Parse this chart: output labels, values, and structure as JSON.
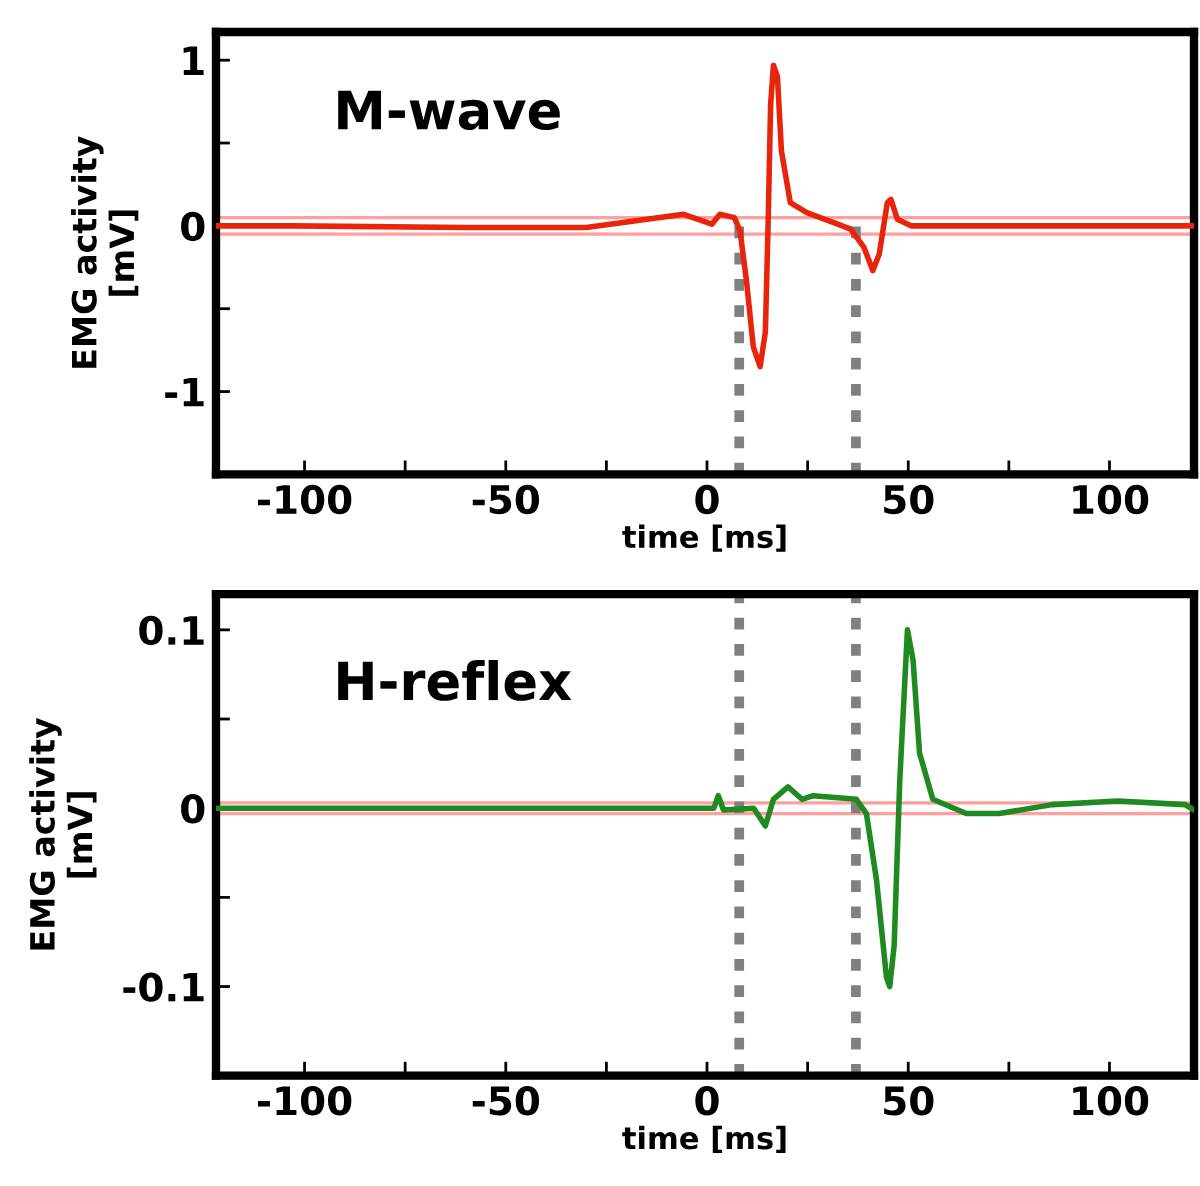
{
  "chart_data": [
    {
      "type": "line",
      "title": "M-wave",
      "xlabel": "time [ms]",
      "ylabel": "EMG activity\n[mV]",
      "x": [
        -122,
        -103,
        -60,
        -30,
        -5.8,
        1.2,
        3.2,
        6.8,
        8.2,
        9.8,
        11.5,
        13.2,
        14.5,
        15.2,
        15.8,
        16.5,
        17.5,
        18.5,
        20.7,
        24.8,
        31.5,
        35.7,
        39,
        41.2,
        42.8,
        44.8,
        45.7,
        47.3,
        50.7,
        80,
        121
      ],
      "series": [
        {
          "color": "#e8250c",
          "values": [
            0,
            0,
            -0.01,
            -0.01,
            0.07,
            0.01,
            0.07,
            0.05,
            -0.03,
            -0.33,
            -0.73,
            -0.85,
            -0.64,
            0.03,
            0.73,
            0.97,
            0.9,
            0.45,
            0.14,
            0.08,
            0.02,
            -0.02,
            -0.13,
            -0.27,
            -0.17,
            0.14,
            0.16,
            0.04,
            0,
            0,
            0
          ]
        }
      ],
      "xlim": [
        -122,
        121
      ],
      "ylim": [
        -1.5,
        1.17
      ],
      "xticks": [
        -100,
        {
          "value": -75,
          "label": null
        },
        -50,
        {
          "value": -25,
          "label": null
        },
        0,
        {
          "value": 25,
          "label": null
        },
        50,
        {
          "value": 75,
          "label": null
        },
        100
      ],
      "yticks": [
        -1,
        {
          "value": -0.5,
          "label": null
        },
        0,
        {
          "value": 0.5,
          "label": null
        },
        1
      ],
      "ref_lines": [
        {
          "axis": "y",
          "value": 0.05,
          "color": "#ff9f9f"
        },
        {
          "axis": "y",
          "value": -0.05,
          "color": "#ff9f9f"
        },
        {
          "axis": "x",
          "value": 8,
          "color": "#808080",
          "line_style": "dotted"
        },
        {
          "axis": "x",
          "value": 37,
          "color": "#808080",
          "line_style": "dotted"
        }
      ],
      "grid": false,
      "legend": false
    },
    {
      "type": "line",
      "title": "H-reflex",
      "xlabel": "time [ms]",
      "ylabel": "EMG activity\n[mV]",
      "x": [
        -122,
        -110.6,
        -60,
        -20,
        1.7,
        2.8,
        4.1,
        11.6,
        14.5,
        16.5,
        20.1,
        23.6,
        26.4,
        37.1,
        39.6,
        42.1,
        44.6,
        45.4,
        46.5,
        47.9,
        49.8,
        51.2,
        52.8,
        56.1,
        64.4,
        72.6,
        85.8,
        102,
        118.8,
        121
      ],
      "series": [
        {
          "color": "#1f8a1f",
          "values": [
            0,
            0,
            0,
            0,
            0,
            0.007,
            -0.001,
            0,
            -0.01,
            0.005,
            0.012,
            0.005,
            0.007,
            0.005,
            -0.003,
            -0.04,
            -0.095,
            -0.1,
            -0.077,
            0.016,
            0.1,
            0.083,
            0.031,
            0.005,
            -0.003,
            -0.003,
            0.002,
            0.004,
            0.002,
            -0.001
          ]
        }
      ],
      "xlim": [
        -122,
        121
      ],
      "ylim": [
        -0.15,
        0.12
      ],
      "xticks": [
        -100,
        {
          "value": -75,
          "label": null
        },
        -50,
        {
          "value": -25,
          "label": null
        },
        0,
        {
          "value": 25,
          "label": null
        },
        50,
        {
          "value": 75,
          "label": null
        },
        100
      ],
      "yticks": [
        -0.1,
        {
          "value": -0.05,
          "label": null
        },
        0,
        {
          "value": 0.05,
          "label": null
        },
        0.1
      ],
      "ref_lines": [
        {
          "axis": "y",
          "value": 0.003,
          "color": "#ff9f9f"
        },
        {
          "axis": "y",
          "value": -0.003,
          "color": "#ff9f9f"
        },
        {
          "axis": "x",
          "value": 8,
          "color": "#808080",
          "line_style": "dotted"
        },
        {
          "axis": "x",
          "value": 37,
          "color": "#808080",
          "line_style": "dotted"
        }
      ],
      "grid": false,
      "legend": false
    }
  ]
}
